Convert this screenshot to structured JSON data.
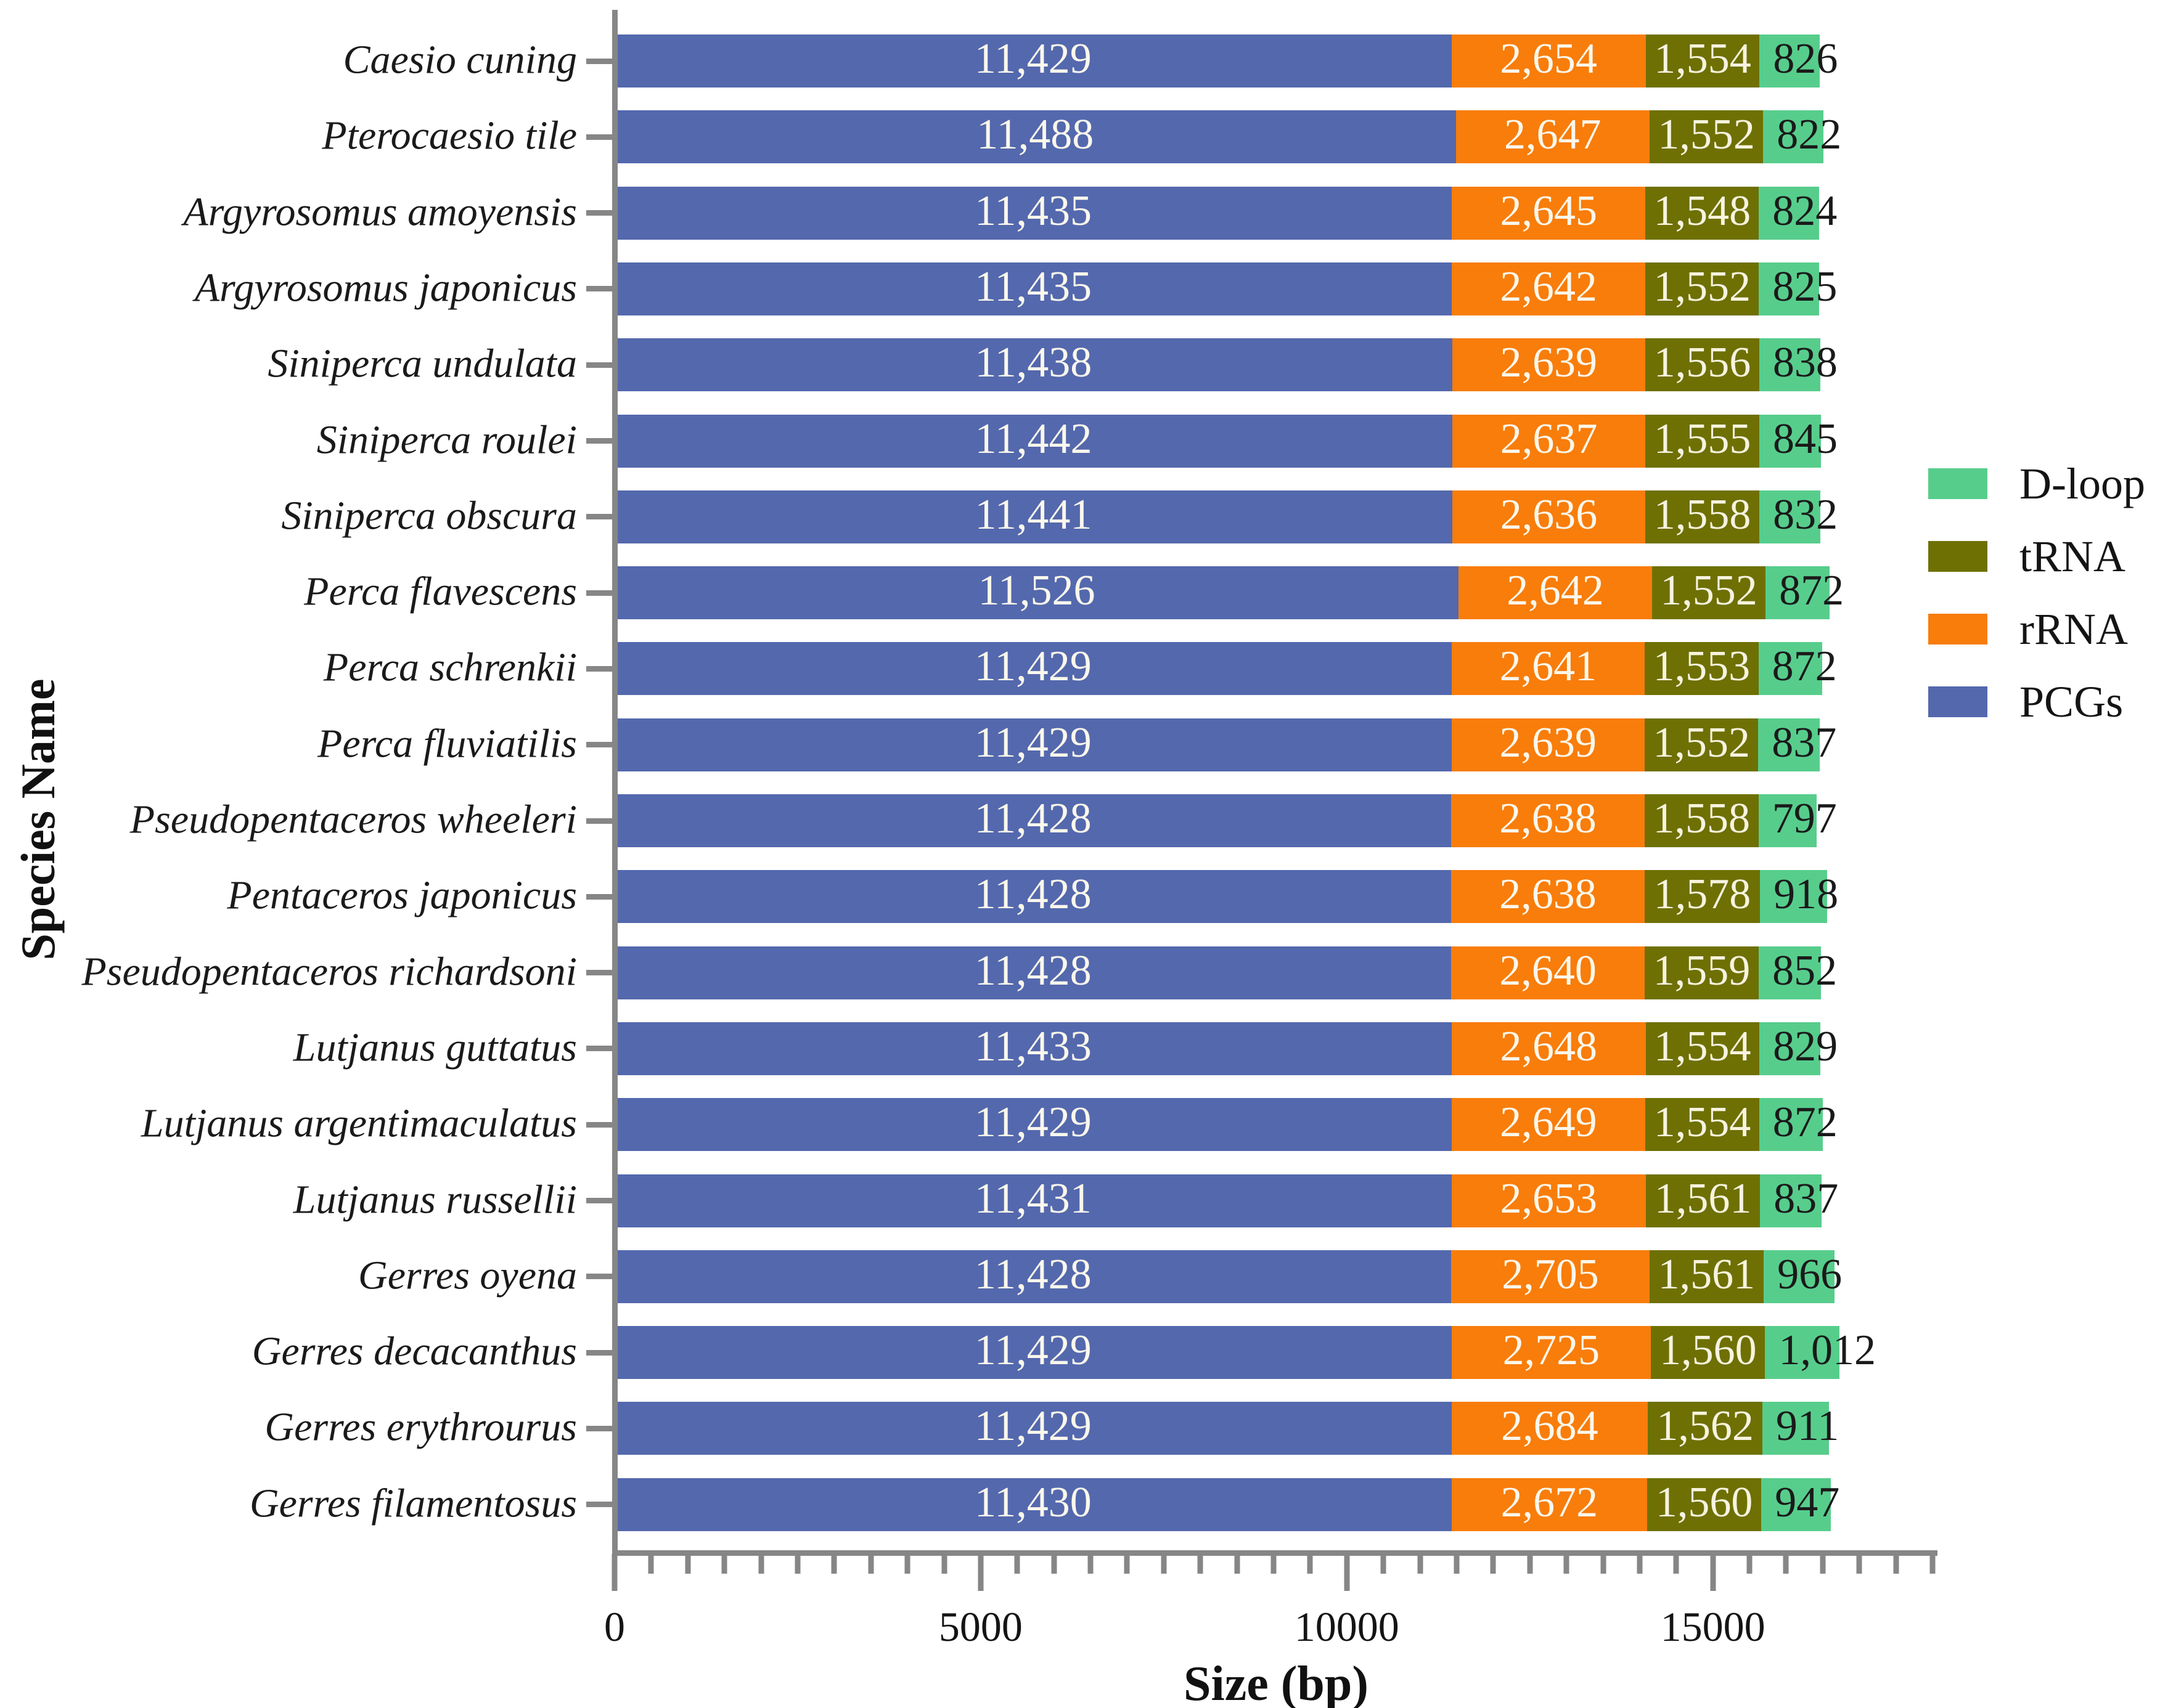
{
  "figure": {
    "y_axis_title": "Species Name",
    "x_axis_title": "Size (bp)"
  },
  "chart_data": {
    "type": "bar",
    "orientation": "horizontal",
    "stacked": true,
    "title": "",
    "xlabel": "Size (bp)",
    "ylabel": "Species Name",
    "xlim": [
      0,
      18000
    ],
    "x_major_ticks": [
      0,
      5000,
      10000,
      15000
    ],
    "x_minor_tick_step": 500,
    "grid": false,
    "legend_position": "right",
    "axis_color": "#868686",
    "text_color": "#1a1a1a",
    "categories": [
      "Caesio cuning",
      "Pterocaesio tile",
      "Argyrosomus amoyensis",
      "Argyrosomus japonicus",
      "Siniperca undulata",
      "Siniperca roulei",
      "Siniperca obscura",
      "Perca flavescens",
      "Perca schrenkii",
      "Perca fluviatilis",
      "Pseudopentaceros wheeleri",
      "Pentaceros japonicus",
      "Pseudopentaceros richardsoni",
      "Lutjanus guttatus",
      "Lutjanus argentimaculatus",
      "Lutjanus russellii",
      "Gerres oyena",
      "Gerres decacanthus",
      "Gerres erythrourus",
      "Gerres filamentosus"
    ],
    "series": [
      {
        "name": "PCGs",
        "color": "#5468ad",
        "label_color": "#faf7ec",
        "values": [
          11429,
          11488,
          11435,
          11435,
          11438,
          11442,
          11441,
          11526,
          11429,
          11429,
          11428,
          11428,
          11428,
          11433,
          11429,
          11431,
          11428,
          11429,
          11429,
          11430
        ]
      },
      {
        "name": "rRNA",
        "color": "#f87d0b",
        "label_color": "#faf7ec",
        "values": [
          2654,
          2647,
          2645,
          2642,
          2639,
          2637,
          2636,
          2642,
          2641,
          2639,
          2638,
          2638,
          2640,
          2648,
          2649,
          2653,
          2705,
          2725,
          2684,
          2672
        ]
      },
      {
        "name": "tRNA",
        "color": "#6e7004",
        "label_color": "#f7f3df",
        "values": [
          1554,
          1552,
          1548,
          1552,
          1556,
          1555,
          1558,
          1552,
          1553,
          1552,
          1558,
          1578,
          1559,
          1554,
          1554,
          1561,
          1561,
          1560,
          1562,
          1560
        ]
      },
      {
        "name": "D-loop",
        "color": "#57cd8c",
        "label_color": "#1a1a1a",
        "values": [
          826,
          822,
          824,
          825,
          838,
          845,
          832,
          872,
          872,
          837,
          797,
          918,
          852,
          829,
          872,
          837,
          966,
          1012,
          911,
          947
        ]
      }
    ],
    "legend_items": [
      {
        "label": "D-loop",
        "color": "#57cd8c"
      },
      {
        "label": "tRNA",
        "color": "#6e7004"
      },
      {
        "label": "rRNA",
        "color": "#f87d0b"
      },
      {
        "label": "PCGs",
        "color": "#5468ad"
      }
    ]
  }
}
